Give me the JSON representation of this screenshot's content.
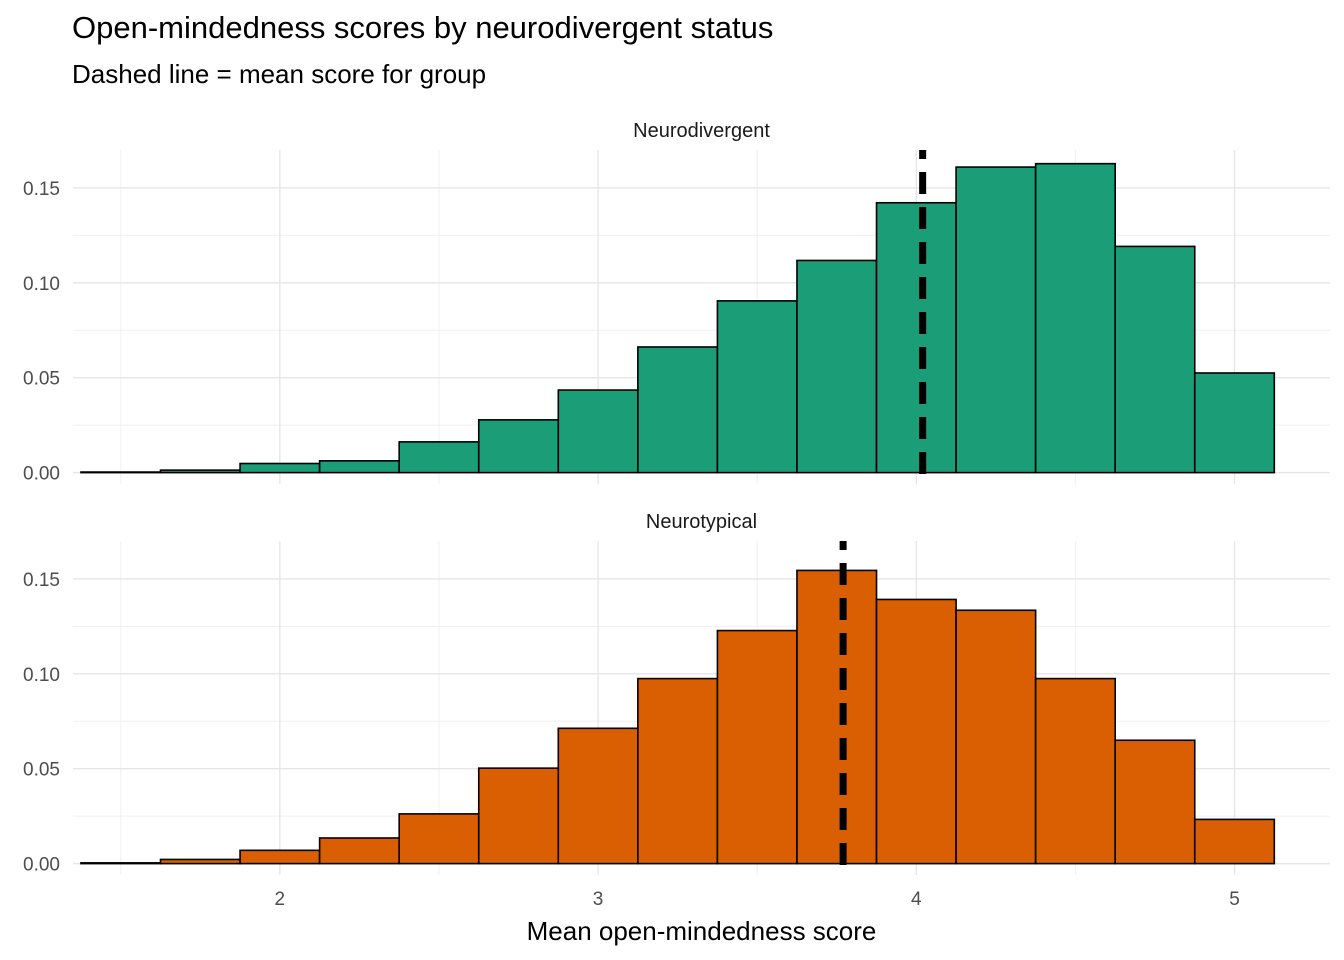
{
  "chart_data": {
    "type": "bar",
    "title": "Open-mindedness scores by neurodivergent status",
    "subtitle": "Dashed line = mean score for group",
    "xlabel": "Mean open-mindedness score",
    "ylabel": "",
    "xlim": [
      1.35,
      5.3
    ],
    "ylim": [
      -0.006,
      0.17
    ],
    "x_ticks": [
      "2",
      "3",
      "4",
      "5"
    ],
    "y_ticks": [
      "0.00",
      "0.05",
      "0.10",
      "0.15"
    ],
    "grid": true,
    "bin_edges": [
      1.375,
      1.625,
      1.875,
      2.125,
      2.375,
      2.625,
      2.875,
      3.125,
      3.375,
      3.625,
      3.875,
      4.125,
      4.375,
      4.625,
      4.875,
      5.125
    ],
    "facets": [
      {
        "name": "Neurodivergent",
        "fill": "#1B9E77",
        "values": [
          0.0003,
          0.0013,
          0.0048,
          0.0062,
          0.0162,
          0.0278,
          0.0435,
          0.0662,
          0.0905,
          0.1118,
          0.1422,
          0.161,
          0.1628,
          0.1192,
          0.0525
        ],
        "mean": 4.02
      },
      {
        "name": "Neurotypical",
        "fill": "#D95F02",
        "values": [
          0.0004,
          0.0022,
          0.007,
          0.0135,
          0.0262,
          0.0503,
          0.0713,
          0.0975,
          0.1228,
          0.1545,
          0.1392,
          0.1335,
          0.0975,
          0.065,
          0.0233
        ],
        "mean": 3.77
      }
    ]
  }
}
